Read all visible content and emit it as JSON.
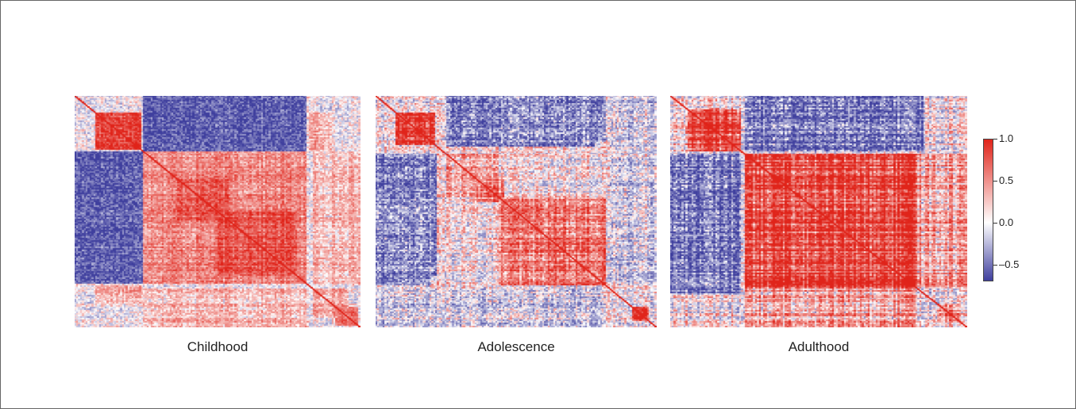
{
  "chart_data": {
    "type": "heatmap",
    "title": "",
    "panels": [
      {
        "label": "Childhood",
        "blocks": [
          {
            "from": 0.07,
            "to": 0.23,
            "r": 0.85
          },
          {
            "from": 0.24,
            "to": 0.81,
            "r": 0.5
          },
          {
            "from": 0.36,
            "to": 0.54,
            "r": 0.72
          },
          {
            "from": 0.5,
            "to": 0.78,
            "r": 0.75
          },
          {
            "from": 0.83,
            "to": 0.96,
            "r": 0.35
          },
          {
            "from": 0.91,
            "to": 0.99,
            "r": 0.55
          }
        ],
        "cross_blocks": [
          {
            "rows": [
              0.0,
              0.24
            ],
            "cols": [
              0.24,
              0.81
            ],
            "r": -0.55
          },
          {
            "rows": [
              0.24,
              0.81
            ],
            "cols": [
              0.0,
              0.24
            ],
            "r": -0.55
          },
          {
            "rows": [
              0.07,
              0.24
            ],
            "cols": [
              0.82,
              0.9
            ],
            "r": 0.35
          },
          {
            "rows": [
              0.82,
              0.9
            ],
            "cols": [
              0.07,
              0.24
            ],
            "r": 0.35
          },
          {
            "rows": [
              0.24,
              0.81
            ],
            "cols": [
              0.83,
              1.0
            ],
            "r": 0.25
          },
          {
            "rows": [
              0.83,
              1.0
            ],
            "cols": [
              0.24,
              0.81
            ],
            "r": 0.25
          }
        ],
        "noise": 0.25,
        "stripe": 0.25,
        "bias": 0.0
      },
      {
        "label": "Adolescence",
        "blocks": [
          {
            "from": 0.07,
            "to": 0.21,
            "r": 0.85
          },
          {
            "from": 0.25,
            "to": 0.44,
            "r": 0.3
          },
          {
            "from": 0.36,
            "to": 0.46,
            "r": 0.65
          },
          {
            "from": 0.44,
            "to": 0.82,
            "r": 0.5
          },
          {
            "from": 0.6,
            "to": 0.82,
            "r": 0.65
          },
          {
            "from": 0.91,
            "to": 0.97,
            "r": 0.85
          }
        ],
        "cross_blocks": [
          {
            "rows": [
              0.0,
              0.22
            ],
            "cols": [
              0.25,
              0.78
            ],
            "r": -0.45
          },
          {
            "rows": [
              0.25,
              0.78
            ],
            "cols": [
              0.0,
              0.22
            ],
            "r": -0.45
          },
          {
            "rows": [
              0.44,
              0.82
            ],
            "cols": [
              0.0,
              0.2
            ],
            "r": -0.35
          },
          {
            "rows": [
              0.0,
              0.2
            ],
            "cols": [
              0.44,
              0.82
            ],
            "r": -0.35
          },
          {
            "rows": [
              0.82,
              1.0
            ],
            "cols": [
              0.0,
              0.82
            ],
            "r": -0.1
          },
          {
            "rows": [
              0.0,
              0.82
            ],
            "cols": [
              0.82,
              1.0
            ],
            "r": -0.1
          }
        ],
        "noise": 0.32,
        "stripe": 0.4,
        "bias": 0.05
      },
      {
        "label": "Adulthood",
        "blocks": [
          {
            "from": 0.06,
            "to": 0.24,
            "r": 0.85
          },
          {
            "from": 0.25,
            "to": 0.83,
            "r": 0.75
          },
          {
            "from": 0.9,
            "to": 0.97,
            "r": 0.6
          }
        ],
        "cross_blocks": [
          {
            "rows": [
              0.0,
              0.24
            ],
            "cols": [
              0.25,
              0.85
            ],
            "r": -0.45
          },
          {
            "rows": [
              0.25,
              0.85
            ],
            "cols": [
              0.0,
              0.24
            ],
            "r": -0.45
          },
          {
            "rows": [
              0.25,
              0.83
            ],
            "cols": [
              0.83,
              1.0
            ],
            "r": 0.35
          },
          {
            "rows": [
              0.83,
              1.0
            ],
            "cols": [
              0.25,
              0.83
            ],
            "r": 0.35
          }
        ],
        "noise": 0.3,
        "stripe": 0.55,
        "bias": 0.1
      }
    ],
    "colorbar": {
      "min": -0.7,
      "max": 1.0,
      "ticks": [
        {
          "value": 1.0,
          "label": "1.0"
        },
        {
          "value": 0.5,
          "label": "0.5"
        },
        {
          "value": 0.0,
          "label": "0.0"
        },
        {
          "value": -0.5,
          "label": "–0.5"
        }
      ],
      "colors": {
        "low": "#3f3f9e",
        "mid": "#ffffff",
        "high": "#e0241a"
      }
    },
    "diagonal_color": "#e0241a",
    "legend": "right",
    "grid": false
  }
}
